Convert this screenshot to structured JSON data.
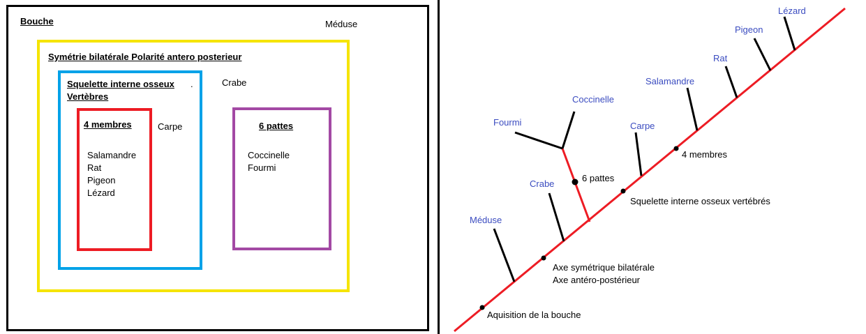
{
  "colors": {
    "outer": "#000000",
    "bilateral": "#f5e400",
    "skeleton": "#00a2e8",
    "limbs": "#ed1c24",
    "legs": "#a349a4",
    "stem": "#ed1c24",
    "species": "#3b4cc0"
  },
  "venn": {
    "mouth_label": "Bouche",
    "meduse_label": "Méduse",
    "bilateral_label": "Symétrie bilatérale Polarité antero posterieur",
    "skeleton_label_line1": "Squelette interne osseux",
    "skeleton_label_dot": ".",
    "skeleton_label_line2": "Vertèbres",
    "crabe_label": "Crabe",
    "carpe_label": "Carpe",
    "limbs_label": "4 membres",
    "limbs_members": [
      "Salamandre",
      "Rat",
      "Pigeon",
      "Lézard"
    ],
    "legs_label": "6 pattes",
    "legs_members": [
      "Coccinelle",
      "Fourmi"
    ]
  },
  "tree": {
    "species": {
      "meduse": "Méduse",
      "crabe": "Crabe",
      "fourmi": "Fourmi",
      "coccinelle": "Coccinelle",
      "carpe": "Carpe",
      "salamandre": "Salamandre",
      "rat": "Rat",
      "pigeon": "Pigeon",
      "lezard": "Lézard"
    },
    "traits": {
      "bouche": "Aquisition de la bouche",
      "axe1": "Axe symétrique bilatérale",
      "axe2": "Axe antéro-postérieur",
      "pattes": "6 pattes",
      "squelette": "Squelette interne osseux vertébrés",
      "membres": "4 membres"
    }
  }
}
